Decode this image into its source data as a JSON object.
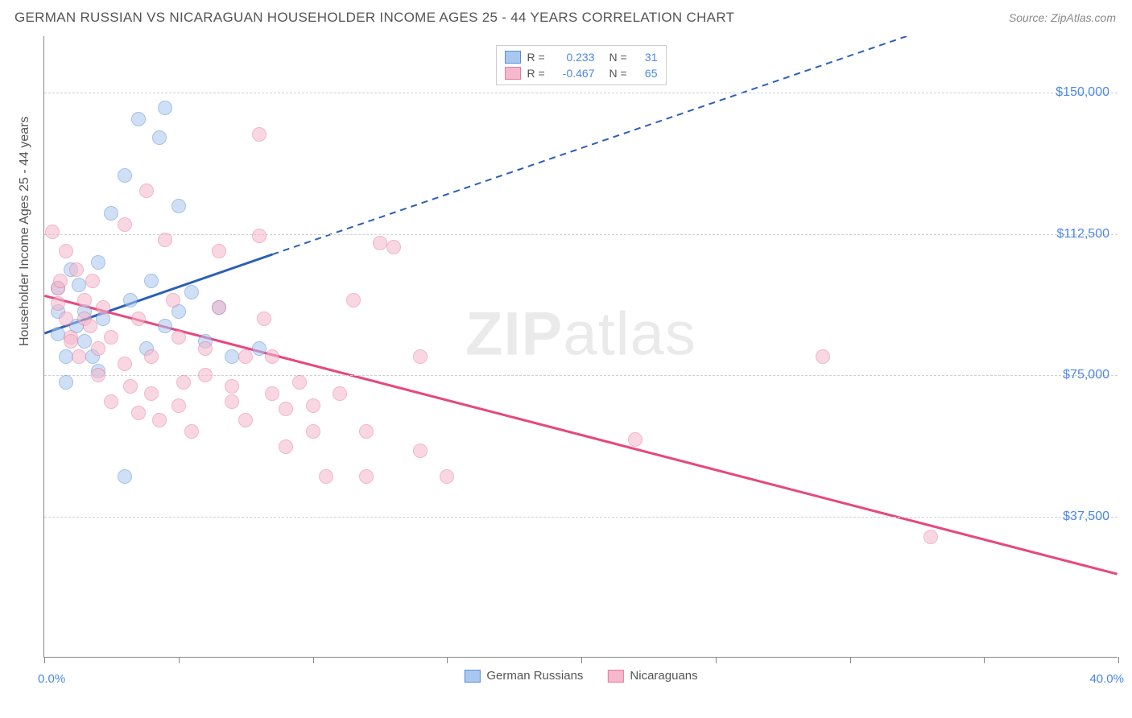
{
  "title": "GERMAN RUSSIAN VS NICARAGUAN HOUSEHOLDER INCOME AGES 25 - 44 YEARS CORRELATION CHART",
  "source": "Source: ZipAtlas.com",
  "watermark_bold": "ZIP",
  "watermark_light": "atlas",
  "chart": {
    "type": "scatter",
    "ylabel": "Householder Income Ages 25 - 44 years",
    "xlim": [
      0,
      40
    ],
    "ylim": [
      0,
      165000
    ],
    "xaxis_min_label": "0.0%",
    "xaxis_max_label": "40.0%",
    "xtick_positions": [
      0,
      5,
      10,
      15,
      20,
      25,
      30,
      35,
      40
    ],
    "ytick_positions": [
      37500,
      75000,
      112500,
      150000
    ],
    "ytick_labels": [
      "$37,500",
      "$75,000",
      "$112,500",
      "$150,000"
    ],
    "grid_color": "#d0d0d0",
    "background_color": "#ffffff",
    "axis_color": "#888888",
    "series": [
      {
        "name": "German Russians",
        "fill_color": "#a8c8f0",
        "stroke_color": "#5b8fd6",
        "trend_color": "#2b5fb8",
        "R": "0.233",
        "N": "31",
        "trend_solid": {
          "x1": 0,
          "y1": 86000,
          "x2": 8.5,
          "y2": 107000
        },
        "trend_dashed": {
          "x1": 8.5,
          "y1": 107000,
          "x2": 35,
          "y2": 172000
        },
        "points": [
          [
            0.5,
            86000
          ],
          [
            0.5,
            92000
          ],
          [
            0.5,
            98000
          ],
          [
            0.8,
            80000
          ],
          [
            0.8,
            73000
          ],
          [
            1.0,
            103000
          ],
          [
            1.2,
            88000
          ],
          [
            1.3,
            99000
          ],
          [
            1.5,
            84000
          ],
          [
            1.5,
            92000
          ],
          [
            1.8,
            80000
          ],
          [
            2.0,
            76000
          ],
          [
            2.0,
            105000
          ],
          [
            2.2,
            90000
          ],
          [
            2.5,
            118000
          ],
          [
            3.0,
            128000
          ],
          [
            3.2,
            95000
          ],
          [
            3.5,
            143000
          ],
          [
            3.8,
            82000
          ],
          [
            4.0,
            100000
          ],
          [
            4.3,
            138000
          ],
          [
            4.5,
            88000
          ],
          [
            4.5,
            146000
          ],
          [
            5.0,
            92000
          ],
          [
            5.0,
            120000
          ],
          [
            5.5,
            97000
          ],
          [
            6.0,
            84000
          ],
          [
            6.5,
            93000
          ],
          [
            7.0,
            80000
          ],
          [
            8.0,
            82000
          ],
          [
            3.0,
            48000
          ]
        ]
      },
      {
        "name": "Nicaguans_fix",
        "display_name": "Nicaraguans",
        "fill_color": "#f5b8cc",
        "stroke_color": "#e77aa0",
        "trend_color": "#e8467f",
        "R": "-0.467",
        "N": "65",
        "trend_solid": {
          "x1": 0,
          "y1": 96000,
          "x2": 40,
          "y2": 22000
        },
        "points": [
          [
            0.3,
            113000
          ],
          [
            0.5,
            98000
          ],
          [
            0.5,
            94000
          ],
          [
            0.6,
            100000
          ],
          [
            0.8,
            90000
          ],
          [
            0.8,
            108000
          ],
          [
            1.0,
            85000
          ],
          [
            1.0,
            84000
          ],
          [
            1.2,
            103000
          ],
          [
            1.3,
            80000
          ],
          [
            1.5,
            95000
          ],
          [
            1.5,
            90000
          ],
          [
            1.7,
            88000
          ],
          [
            1.8,
            100000
          ],
          [
            2.0,
            82000
          ],
          [
            2.0,
            75000
          ],
          [
            2.2,
            93000
          ],
          [
            2.5,
            85000
          ],
          [
            2.5,
            68000
          ],
          [
            3.0,
            78000
          ],
          [
            3.0,
            115000
          ],
          [
            3.2,
            72000
          ],
          [
            3.5,
            65000
          ],
          [
            3.5,
            90000
          ],
          [
            3.8,
            124000
          ],
          [
            4.0,
            70000
          ],
          [
            4.0,
            80000
          ],
          [
            4.3,
            63000
          ],
          [
            4.5,
            111000
          ],
          [
            5.0,
            85000
          ],
          [
            5.0,
            67000
          ],
          [
            5.2,
            73000
          ],
          [
            5.5,
            60000
          ],
          [
            6.0,
            75000
          ],
          [
            6.0,
            82000
          ],
          [
            6.5,
            108000
          ],
          [
            7.0,
            72000
          ],
          [
            7.0,
            68000
          ],
          [
            7.5,
            80000
          ],
          [
            7.5,
            63000
          ],
          [
            8.0,
            139000
          ],
          [
            8.0,
            112000
          ],
          [
            8.2,
            90000
          ],
          [
            8.5,
            80000
          ],
          [
            8.5,
            70000
          ],
          [
            9.0,
            66000
          ],
          [
            9.0,
            56000
          ],
          [
            9.5,
            73000
          ],
          [
            10.0,
            67000
          ],
          [
            10.0,
            60000
          ],
          [
            10.5,
            48000
          ],
          [
            11.0,
            70000
          ],
          [
            11.5,
            95000
          ],
          [
            12.0,
            60000
          ],
          [
            12.0,
            48000
          ],
          [
            12.5,
            110000
          ],
          [
            13.0,
            109000
          ],
          [
            14.0,
            80000
          ],
          [
            14.0,
            55000
          ],
          [
            15.0,
            48000
          ],
          [
            22.0,
            58000
          ],
          [
            29.0,
            80000
          ],
          [
            33.0,
            32000
          ],
          [
            6.5,
            93000
          ],
          [
            4.8,
            95000
          ]
        ]
      }
    ],
    "legend_top_labels": {
      "R": "R =",
      "N": "N ="
    },
    "legend_bottom": [
      "German Russians",
      "Nicaraguans"
    ]
  }
}
